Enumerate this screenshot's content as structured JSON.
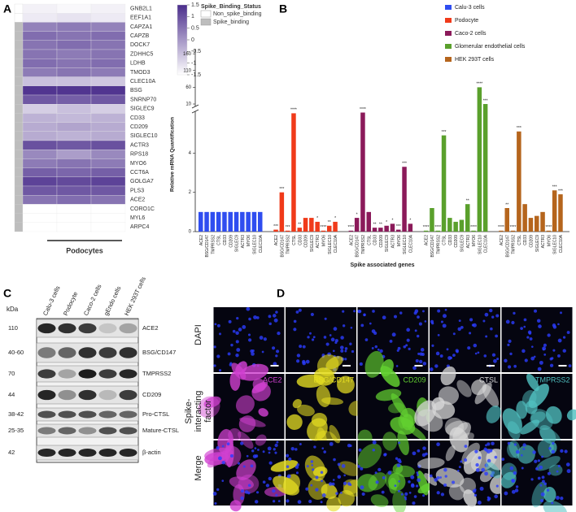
{
  "panels": {
    "a": {
      "label": "A",
      "type": "heatmap",
      "rows": [
        "GNB2L1",
        "EEF1A1",
        "CAPZA1",
        "CAPZB",
        "DOCK7",
        "ZDHHC5",
        "LDHB",
        "TMOD3",
        "CLEC10A",
        "BSG",
        "SNRNP70",
        "SIGLEC9",
        "CD33",
        "CD209",
        "SIGLEC10",
        "ACTR3",
        "RPS18",
        "MYO6",
        "CCT6A",
        "GOLGA7",
        "PLS3",
        "ACE2",
        "CORO1C",
        "MYL6",
        "ARPC4"
      ],
      "values": [
        [
          -1.3,
          -1.4,
          -1.3
        ],
        [
          -1.2,
          -1.1,
          -1.2
        ],
        [
          0.3,
          0.4,
          0.3
        ],
        [
          0.6,
          0.5,
          0.6
        ],
        [
          0.5,
          0.6,
          0.5
        ],
        [
          0.5,
          0.4,
          0.5
        ],
        [
          0.6,
          0.5,
          0.6
        ],
        [
          0.4,
          0.5,
          0.4
        ],
        [
          -0.6,
          -0.6,
          -0.7
        ],
        [
          1.4,
          1.4,
          1.4
        ],
        [
          0.9,
          0.8,
          0.9
        ],
        [
          -0.8,
          -0.6,
          -0.8
        ],
        [
          -0.4,
          -0.5,
          -0.4
        ],
        [
          -0.3,
          -0.2,
          -0.3
        ],
        [
          -0.3,
          -0.4,
          -0.3
        ],
        [
          1.0,
          0.9,
          1.0
        ],
        [
          0.2,
          -0.1,
          0.2
        ],
        [
          0.4,
          0.5,
          0.4
        ],
        [
          0.8,
          0.7,
          0.8
        ],
        [
          1.2,
          1.1,
          1.2
        ],
        [
          0.9,
          0.9,
          0.9
        ],
        [
          0.5,
          0.6,
          0.5
        ],
        [
          -1.5,
          -1.5,
          -1.5
        ],
        [
          -1.5,
          -1.5,
          -1.5
        ],
        [
          -1.5,
          -1.5,
          -1.5
        ]
      ],
      "spike_binding": [
        false,
        false,
        true,
        true,
        true,
        true,
        true,
        true,
        true,
        true,
        true,
        true,
        true,
        true,
        true,
        true,
        true,
        true,
        true,
        true,
        true,
        true,
        true,
        true,
        true
      ],
      "colorbar": {
        "lim": [
          -1.5,
          1.5
        ],
        "ticks": [
          1.5,
          1,
          0.5,
          0,
          -0.5,
          -1,
          -1.5
        ],
        "low_color": "#ffffff",
        "high_color": "#4b2e8c"
      },
      "legend": {
        "title": "Spike_Binding_Status",
        "items": [
          {
            "name": "Non_spike_binding",
            "color": "#ffffff"
          },
          {
            "name": "Spike_binding",
            "color": "#bdbdbd"
          }
        ]
      },
      "xlabel": "Podocytes"
    },
    "b": {
      "label": "B",
      "chart_data": {
        "type": "bar",
        "ylabel": "Relative mRNA Quantification",
        "xlabel": "Spike associated genes",
        "categories": [
          "ACE2",
          "BSG/CD147",
          "TMPRSS2",
          "CTSL",
          "CD33",
          "CD209",
          "SIGLEC9",
          "ACTR3",
          "MYO6",
          "SIGLEC10",
          "CLEC10A"
        ],
        "series": [
          {
            "name": "Calu-3 cells",
            "color": "#2f4df0",
            "values": [
              1,
              1,
              1,
              1,
              1,
              1,
              1,
              1,
              1,
              1,
              1
            ],
            "annotations": [
              null,
              null,
              null,
              null,
              null,
              null,
              null,
              null,
              null,
              null,
              null
            ]
          },
          {
            "name": "Podocyte",
            "color": "#f03a1a",
            "values": [
              0.1,
              2.0,
              0.05,
              6.2,
              0.2,
              0.7,
              0.7,
              0.5,
              0.05,
              0.3,
              0.5
            ],
            "annotations": [
              "***",
              "***",
              "***",
              "****",
              "**",
              null,
              null,
              "*",
              "****",
              "**",
              "*"
            ]
          },
          {
            "name": "Caco-2 cells",
            "color": "#8b1a5a",
            "values": [
              0.05,
              0.7,
              6.5,
              1.0,
              0.2,
              0.2,
              0.3,
              0.4,
              0.1,
              3.3,
              0.4
            ],
            "annotations": [
              "****",
              "*",
              "****",
              null,
              "**",
              "**",
              "*",
              "*",
              "***",
              "***",
              "*"
            ]
          },
          {
            "name": "Glomerular endothelial cells",
            "color": "#5aa02c",
            "values": [
              0.05,
              1.2,
              0.05,
              4.9,
              0.7,
              0.5,
              0.6,
              1.4,
              0.05,
              60,
              10
            ],
            "annotations": [
              "****",
              null,
              "****",
              "***",
              null,
              null,
              null,
              "**",
              "****",
              "****",
              "***"
            ]
          },
          {
            "name": "HEK 293T cells",
            "color": "#b5651d",
            "values": [
              0.05,
              1.2,
              0.05,
              5.1,
              1.4,
              0.7,
              0.8,
              1.0,
              0.05,
              2.1,
              1.9
            ],
            "annotations": [
              "****",
              "**",
              "****",
              "***",
              null,
              null,
              null,
              null,
              "****",
              "***",
              "***"
            ]
          }
        ],
        "ylim": [
          0,
          175
        ],
        "ybreak": [
          6,
          10
        ],
        "yticks": [
          0,
          2,
          4,
          10,
          60,
          110,
          160
        ]
      }
    },
    "c": {
      "label": "C",
      "kda_title": "kDa",
      "columns": [
        "Calu-3 cells",
        "Podocyte",
        "Caco-2 cells",
        "gEndo cells",
        "HEK 293T cells"
      ],
      "rows": [
        {
          "name": "ACE2",
          "kda": 110
        },
        {
          "name": "BSG/CD147",
          "kda": "40-60"
        },
        {
          "name": "TMPRSS2",
          "kda": 70
        },
        {
          "name": "CD209",
          "kda": 44
        },
        {
          "name": "Pro-CTSL",
          "kda": "38-42"
        },
        {
          "name": "Mature-CTSL",
          "kda": "25-35"
        },
        {
          "name": "β-actin",
          "kda": 42
        }
      ],
      "bands": [
        [
          0.9,
          0.85,
          0.8,
          0.15,
          0.3
        ],
        [
          0.5,
          0.6,
          0.85,
          0.8,
          0.85
        ],
        [
          0.8,
          0.3,
          0.95,
          0.8,
          0.9
        ],
        [
          0.9,
          0.4,
          0.85,
          0.2,
          0.8
        ],
        [
          0.7,
          0.7,
          0.7,
          0.6,
          0.6
        ],
        [
          0.5,
          0.6,
          0.4,
          0.7,
          0.7
        ],
        [
          0.9,
          0.9,
          0.9,
          0.9,
          0.9
        ]
      ]
    },
    "d": {
      "label": "D",
      "rows": [
        "DAPI",
        "Spike-interacting factor",
        "Merge"
      ],
      "columns": [
        {
          "name": "ACE2",
          "color": "#d040d0"
        },
        {
          "name": "BSG/CD147",
          "color": "#e6de22"
        },
        {
          "name": "CD209",
          "color": "#62d030"
        },
        {
          "name": "CTSL",
          "color": "#d8d8d8"
        },
        {
          "name": "TMPRSS2",
          "color": "#50c0c0"
        }
      ]
    }
  }
}
